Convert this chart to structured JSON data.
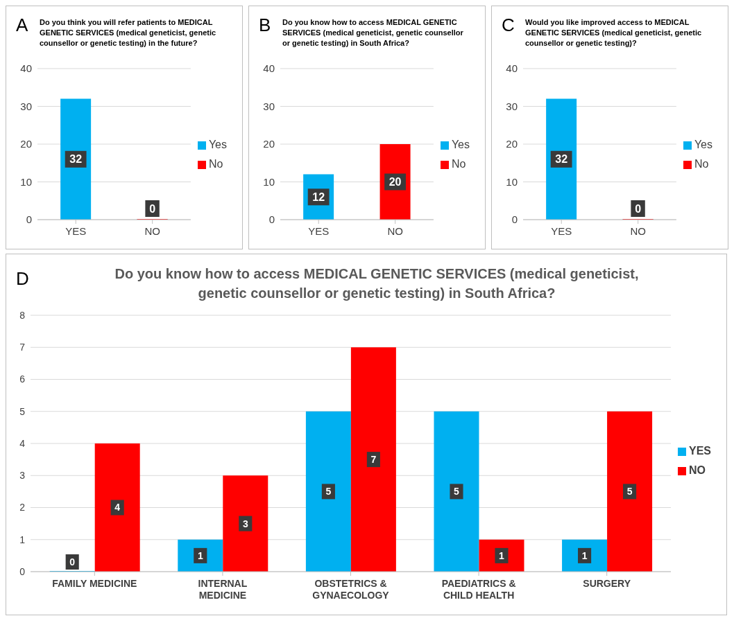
{
  "chart_data": [
    {
      "type": "bar",
      "title": "Do you think you will refer patients to MEDICAL GENETIC SERVICES (medical geneticist, genetic counsellor or genetic testing) in the future?",
      "annotations": [
        "A"
      ],
      "categories": [
        "YES",
        "NO"
      ],
      "series": [
        {
          "name": "Yes",
          "color": "#00b0f0",
          "values": [
            32,
            null
          ]
        },
        {
          "name": "No",
          "color": "#ff0000",
          "values": [
            null,
            0
          ]
        }
      ],
      "stacked": true,
      "ylim": [
        0,
        40
      ],
      "yticks": [
        0,
        10,
        20,
        30,
        40
      ],
      "grid": "y",
      "legend": "right",
      "data_labels": true
    },
    {
      "type": "bar",
      "title": "Do you know how to access MEDICAL GENETIC SERVICES (medical geneticist, genetic counsellor or genetic testing) in South Africa?",
      "annotations": [
        "B"
      ],
      "categories": [
        "YES",
        "NO"
      ],
      "series": [
        {
          "name": "Yes",
          "color": "#00b0f0",
          "values": [
            12,
            null
          ]
        },
        {
          "name": "No",
          "color": "#ff0000",
          "values": [
            null,
            20
          ]
        }
      ],
      "stacked": true,
      "ylim": [
        0,
        40
      ],
      "yticks": [
        0,
        10,
        20,
        30,
        40
      ],
      "grid": "y",
      "legend": "right",
      "data_labels": true
    },
    {
      "type": "bar",
      "title": "Would you like improved access to MEDICAL GENETIC SERVICES (medical geneticist, genetic counsellor or genetic testing)?",
      "annotations": [
        "C"
      ],
      "categories": [
        "YES",
        "NO"
      ],
      "series": [
        {
          "name": "Yes",
          "color": "#00b0f0",
          "values": [
            32,
            null
          ]
        },
        {
          "name": "No",
          "color": "#ff0000",
          "values": [
            null,
            0
          ]
        }
      ],
      "stacked": true,
      "ylim": [
        0,
        40
      ],
      "yticks": [
        0,
        10,
        20,
        30,
        40
      ],
      "grid": "y",
      "legend": "right",
      "data_labels": true
    },
    {
      "type": "bar",
      "title": "Do you know how to access MEDICAL GENETIC SERVICES (medical geneticist, genetic counsellor or genetic testing) in South Africa?",
      "annotations": [
        "D"
      ],
      "categories": [
        "FAMILY MEDICINE",
        "INTERNAL MEDICINE",
        "OBSTETRICS & GYNAECOLOGY",
        "PAEDIATRICS & CHILD HEALTH",
        "SURGERY"
      ],
      "series": [
        {
          "name": "YES",
          "color": "#00b0f0",
          "values": [
            0,
            1,
            5,
            5,
            1
          ]
        },
        {
          "name": "NO",
          "color": "#ff0000",
          "values": [
            4,
            3,
            7,
            1,
            5
          ]
        }
      ],
      "ylim": [
        0,
        8
      ],
      "yticks": [
        0,
        1,
        2,
        3,
        4,
        5,
        6,
        7,
        8
      ],
      "grid": "y",
      "legend": "right",
      "data_labels": true
    }
  ]
}
